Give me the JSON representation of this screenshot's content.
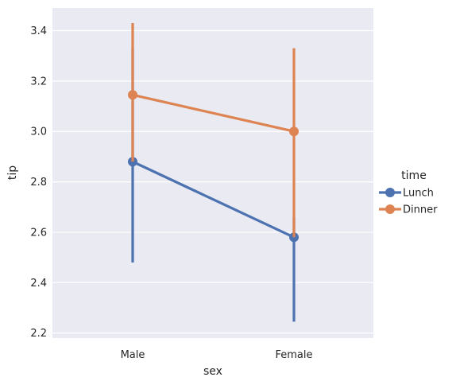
{
  "chart_data": {
    "type": "line",
    "title": "",
    "xlabel": "sex",
    "ylabel": "tip",
    "categories": [
      "Male",
      "Female"
    ],
    "ylim": [
      2.18,
      3.49
    ],
    "yticks": [
      "2.2",
      "2.4",
      "2.6",
      "2.8",
      "3.0",
      "3.2",
      "3.4"
    ],
    "grid": true,
    "legend": {
      "title": "time",
      "position": "right"
    },
    "series": [
      {
        "name": "Lunch",
        "color": "#4c72b0",
        "values": [
          2.88,
          2.58
        ],
        "ci_low": [
          2.48,
          2.245
        ],
        "ci_high": [
          3.33,
          2.66
        ]
      },
      {
        "name": "Dinner",
        "color": "#dd8452",
        "values": [
          3.145,
          3.0
        ],
        "ci_low": [
          2.88,
          2.58
        ],
        "ci_high": [
          3.43,
          3.33
        ]
      }
    ]
  },
  "colors": {
    "plot_bg": "#eaeaf2",
    "grid": "#ffffff",
    "text": "#262626"
  }
}
